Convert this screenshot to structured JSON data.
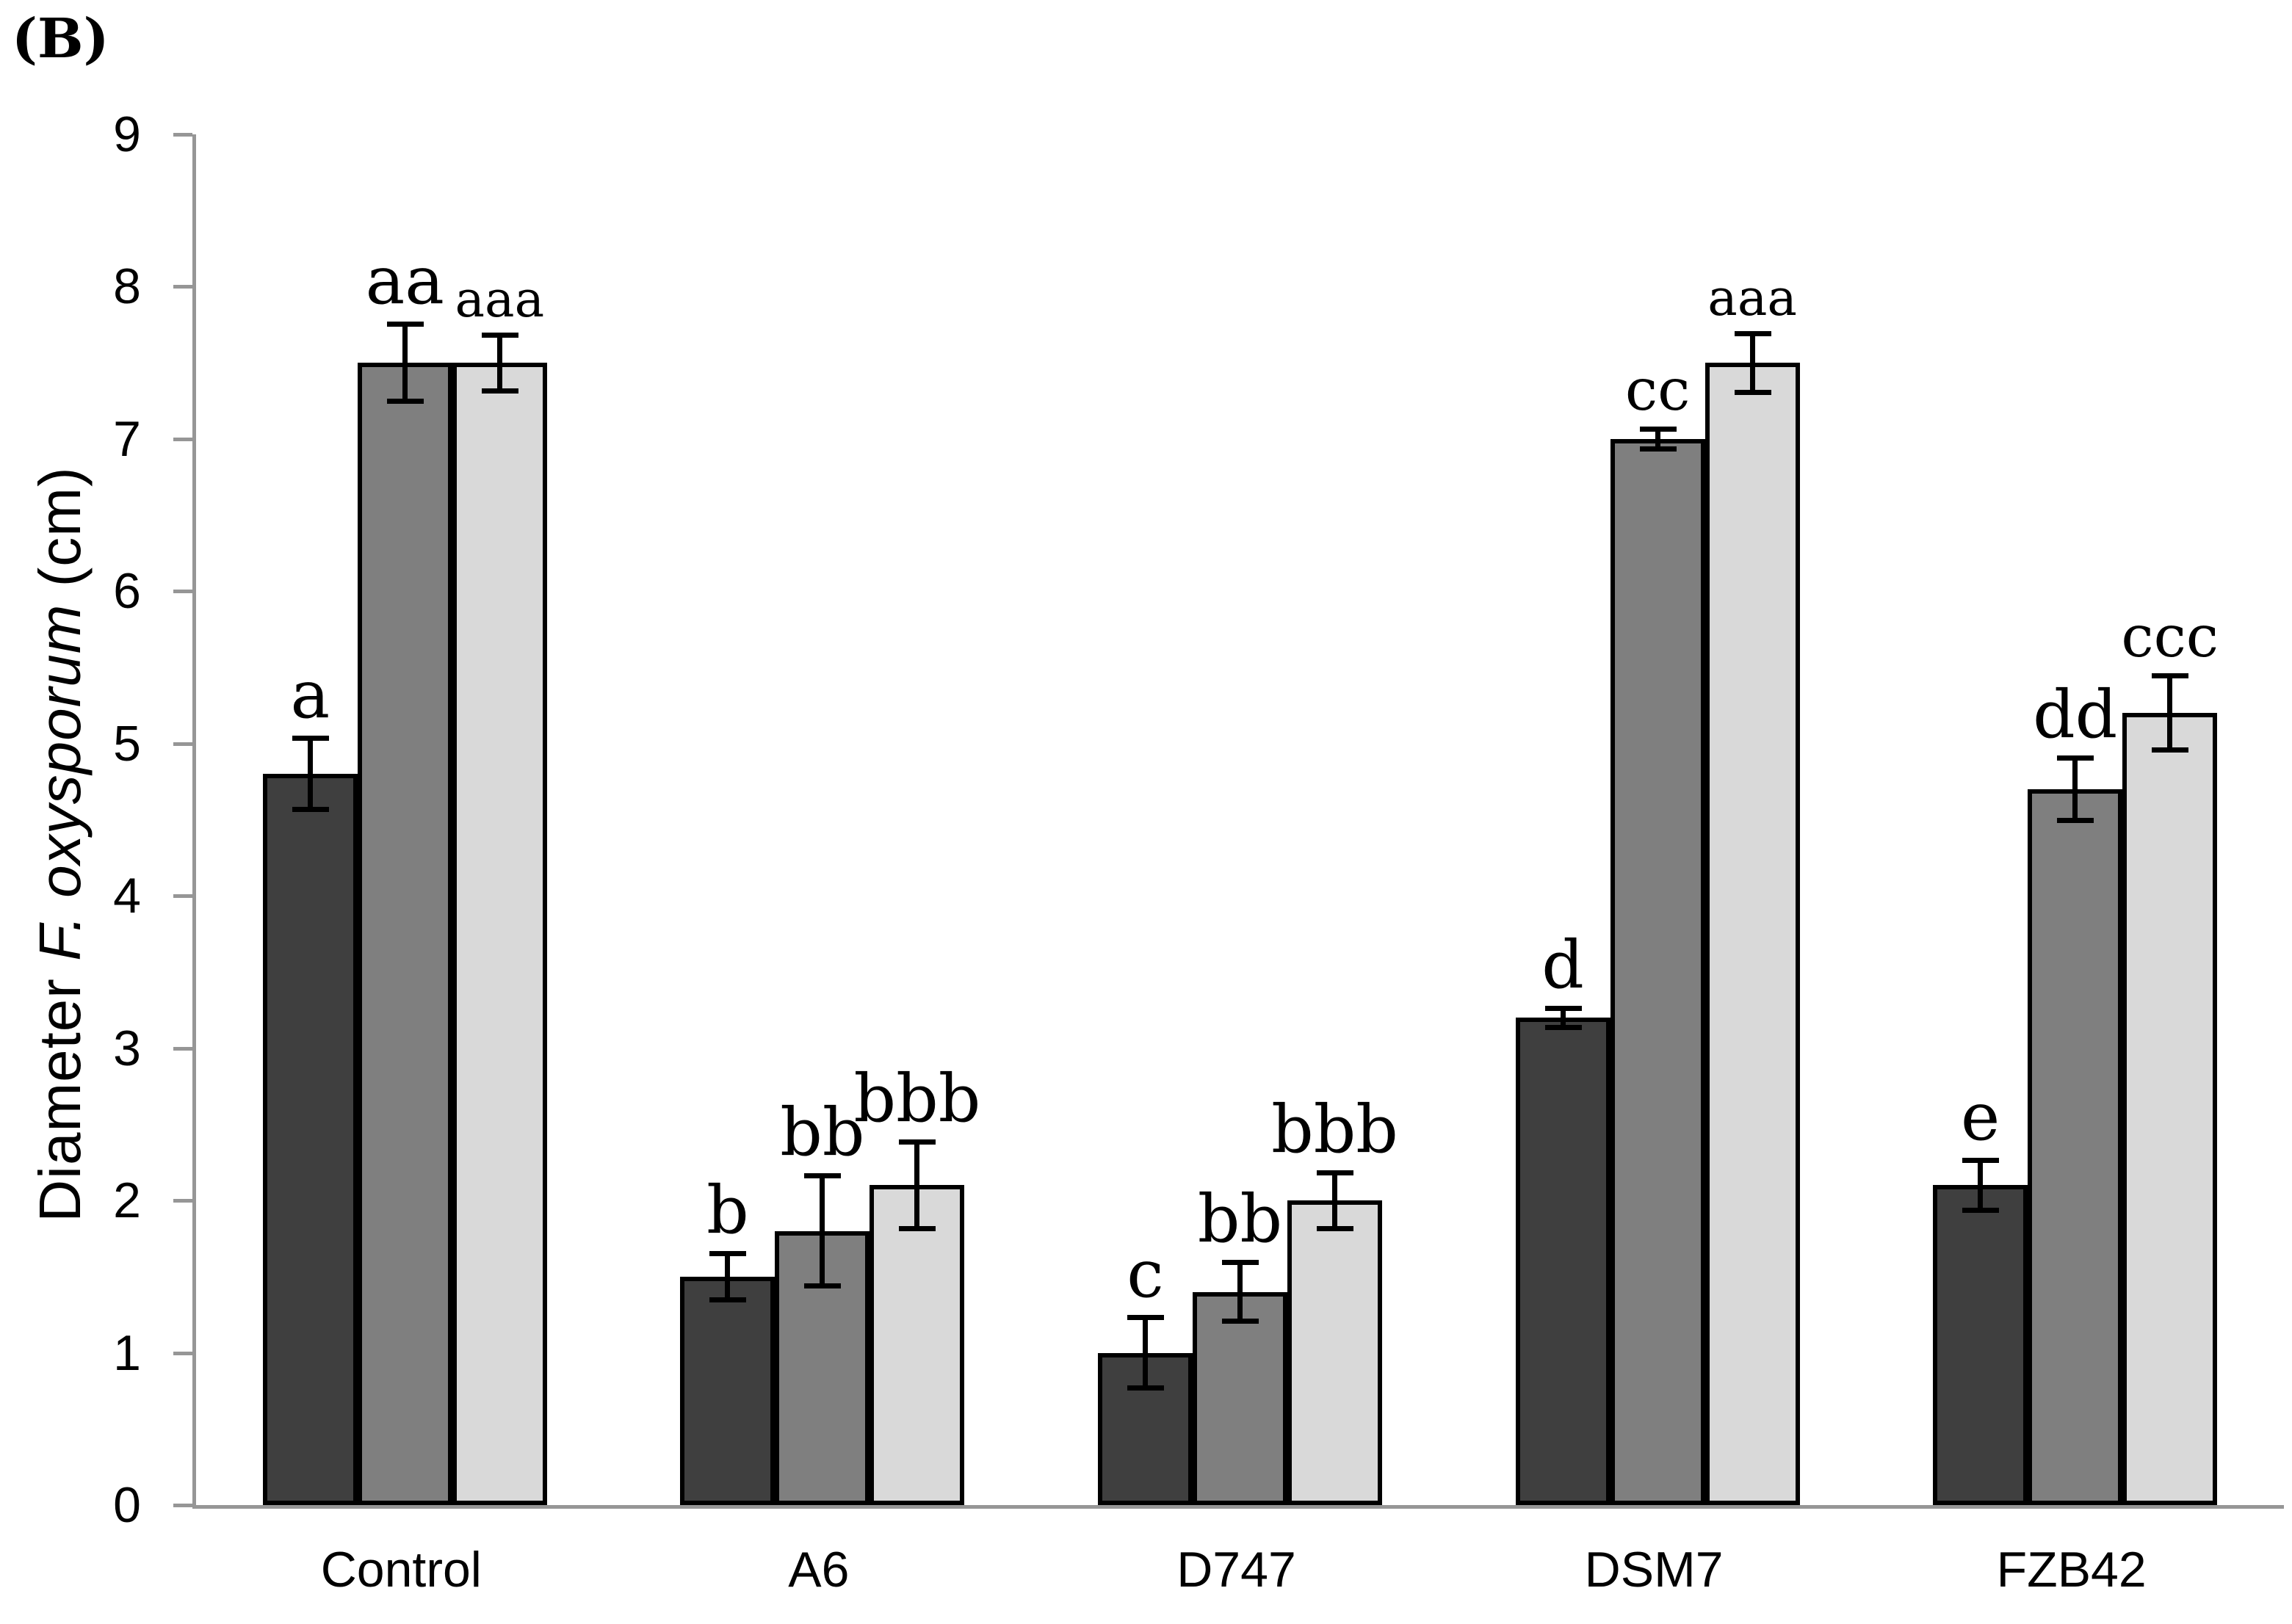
{
  "chart_data": {
    "type": "bar",
    "panel_label": "(B)",
    "title": "",
    "xlabel": "",
    "ylabel": "Diameter F. oxysporum (cm)",
    "ylabel_parts": {
      "prefix": "Diameter ",
      "italic": "F. oxysporum",
      "suffix": " (cm)"
    },
    "ylim": [
      0,
      9
    ],
    "yticks": [
      0,
      1,
      2,
      3,
      4,
      5,
      6,
      7,
      8,
      9
    ],
    "grid": false,
    "legend": "none",
    "axis_color": "#969696",
    "bar_outline_color": "#000000",
    "categories": [
      "Control",
      "A6",
      "D747",
      "DSM7",
      "FZB42"
    ],
    "series": [
      {
        "name": "dark-gray-bars",
        "color": "#3F3F3F",
        "values": [
          4.8,
          1.5,
          1.0,
          3.2,
          2.1
        ],
        "errors": [
          0.25,
          0.17,
          0.25,
          0.08,
          0.18
        ],
        "labels": [
          "a",
          "b",
          "c",
          "d",
          "e"
        ],
        "label_scales": [
          1,
          1,
          1,
          1,
          1
        ]
      },
      {
        "name": "medium-gray-bars",
        "color": "#7F7F7F",
        "values": [
          7.5,
          1.8,
          1.4,
          7.0,
          4.7
        ],
        "errors": [
          0.27,
          0.38,
          0.21,
          0.08,
          0.22
        ],
        "labels": [
          "aa",
          "bb",
          "bb",
          "cc",
          "dd"
        ],
        "label_scales": [
          1,
          1,
          1,
          0.88,
          1
        ]
      },
      {
        "name": "light-gray-bars",
        "color": "#D9D9D9",
        "values": [
          7.5,
          2.1,
          2.0,
          7.5,
          5.2
        ],
        "errors": [
          0.2,
          0.3,
          0.2,
          0.21,
          0.26
        ],
        "labels": [
          "aaa",
          "bbb",
          "bbb",
          "aaa",
          "ccc"
        ],
        "label_scales": [
          0.75,
          1,
          1,
          0.75,
          0.88
        ]
      }
    ]
  }
}
